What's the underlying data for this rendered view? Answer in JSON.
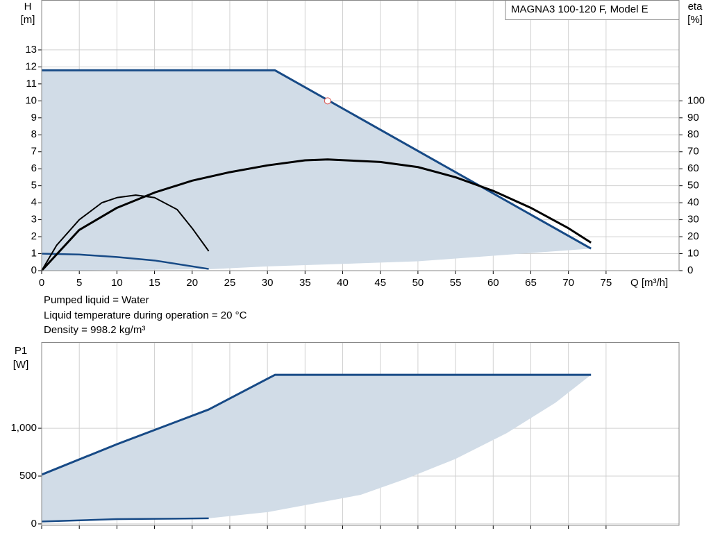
{
  "chart_data": [
    {
      "type": "line",
      "title": "MAGNA3 100-120 F, Model E",
      "ylabel": "H",
      "ylabel_unit": "[m]",
      "y2label": "eta",
      "y2label_unit": "[%]",
      "xlabel": "Q [m³/h]",
      "annotations": [
        "Pumped liquid = Water",
        "Liquid temperature during operation = 20 °C",
        "Density = 998.2 kg/m³"
      ],
      "xlim": [
        0,
        84.7
      ],
      "xticks": [
        0,
        5,
        10,
        15,
        20,
        25,
        30,
        35,
        40,
        45,
        50,
        55,
        60,
        65,
        70,
        75
      ],
      "ylim": [
        0,
        15.94
      ],
      "yticks": [
        0,
        1,
        2,
        3,
        4,
        5,
        6,
        7,
        8,
        9,
        10,
        11,
        12,
        13
      ],
      "y2lim": [
        0,
        159.4
      ],
      "y2ticks": [
        0,
        10,
        20,
        30,
        40,
        50,
        60,
        70,
        80,
        90,
        100
      ],
      "grid": true,
      "fill": {
        "color": "#d1dce7",
        "x": [
          0,
          22.2,
          30,
          50,
          73
        ],
        "values": [
          0,
          0.08,
          0.25,
          0.55,
          1.3
        ]
      },
      "series": [
        {
          "color": "#174a86",
          "width": 3,
          "x": [
            0,
            31,
            73
          ],
          "values": [
            11.8,
            11.8,
            1.3
          ]
        },
        {
          "color": "#174a86",
          "width": 2.5,
          "x": [
            0,
            5,
            10,
            15,
            22.2
          ],
          "values": [
            1.0,
            0.95,
            0.8,
            0.6,
            0.1
          ]
        },
        {
          "color": "#000000",
          "width": 3,
          "axis": "y2",
          "x": [
            0,
            5,
            10,
            15,
            20,
            25,
            30,
            35,
            38,
            45,
            50,
            55,
            60,
            65,
            70,
            73
          ],
          "values": [
            0,
            24,
            37,
            46,
            53,
            58,
            62,
            65,
            65.5,
            64,
            61,
            55,
            47,
            37,
            25,
            16.5
          ]
        },
        {
          "color": "#000000",
          "width": 2,
          "axis": "y2",
          "x": [
            0,
            2,
            5,
            8,
            10,
            12.5,
            15,
            18,
            20,
            22.2
          ],
          "values": [
            0,
            15,
            30,
            40,
            43,
            44.5,
            43,
            36,
            25,
            11.5
          ]
        }
      ],
      "point": {
        "color": "#d9534f",
        "x": 38,
        "value": 10
      }
    },
    {
      "type": "line",
      "ylabel": "P1",
      "ylabel_unit": "[W]",
      "xlim": [
        0,
        84.7
      ],
      "ylim": [
        -15,
        1900
      ],
      "yticks": [
        0,
        500,
        {
          "value": 1000,
          "label": "1,000"
        }
      ],
      "grid": true,
      "fill": {
        "color": "#d1dce7",
        "x": [
          22.2,
          30,
          42.4,
          48.4,
          55,
          61.8,
          68.3,
          73
        ],
        "values": [
          58,
          123,
          304,
          471,
          680,
          949,
          1268,
          1558
        ]
      },
      "series": [
        {
          "color": "#174a86",
          "width": 3,
          "x": [
            0,
            10,
            22.2,
            31,
            73
          ],
          "values": [
            515,
            833,
            1196,
            1558,
            1558
          ]
        },
        {
          "color": "#174a86",
          "width": 2.5,
          "x": [
            0,
            10,
            22.2
          ],
          "values": [
            25,
            50,
            58
          ]
        }
      ]
    }
  ]
}
